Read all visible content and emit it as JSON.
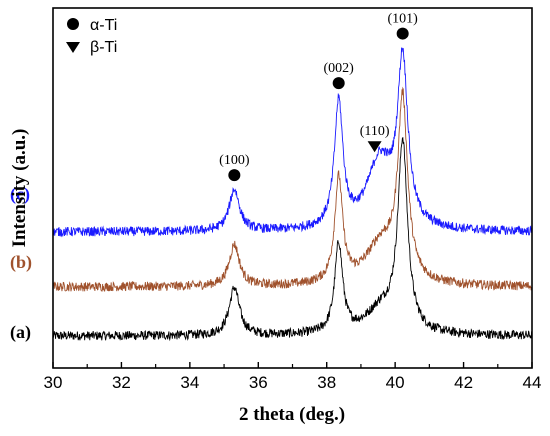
{
  "chart_data": {
    "type": "line",
    "xlabel": "2 theta (deg.)",
    "ylabel": "Intensity (a.u.)",
    "xlim": [
      30,
      44
    ],
    "x_ticks": [
      "30",
      "32",
      "34",
      "36",
      "38",
      "40",
      "42",
      "44"
    ],
    "y_ticks_shown": false,
    "grid": false,
    "legend": {
      "placement": "top-left",
      "entries": [
        {
          "marker": "circle",
          "label": "α-Ti"
        },
        {
          "marker": "triangle-down",
          "label": "β-Ti"
        }
      ]
    },
    "series": [
      {
        "name": "(a)",
        "color": "#000000",
        "baseline": 0.0,
        "peaks": [
          {
            "x": 35.3,
            "height": 0.23,
            "width": 0.18
          },
          {
            "x": 38.35,
            "height": 0.43,
            "width": 0.14
          },
          {
            "x": 39.6,
            "height": 0.12,
            "width": 0.55
          },
          {
            "x": 40.22,
            "height": 0.9,
            "width": 0.17
          }
        ]
      },
      {
        "name": "(b)",
        "color": "#a0522d",
        "baseline": 0.0,
        "peaks": [
          {
            "x": 35.3,
            "height": 0.2,
            "width": 0.18
          },
          {
            "x": 38.35,
            "height": 0.5,
            "width": 0.14
          },
          {
            "x": 39.6,
            "height": 0.2,
            "width": 0.55
          },
          {
            "x": 40.22,
            "height": 0.85,
            "width": 0.17
          }
        ]
      },
      {
        "name": "(c)",
        "color": "#1a1aff",
        "baseline": 0.0,
        "peaks": [
          {
            "x": 35.3,
            "height": 0.2,
            "width": 0.18
          },
          {
            "x": 38.35,
            "height": 0.6,
            "width": 0.15
          },
          {
            "x": 39.55,
            "height": 0.33,
            "width": 0.45
          },
          {
            "x": 40.22,
            "height": 0.78,
            "width": 0.18
          }
        ]
      }
    ],
    "annotations": [
      {
        "label": "(100)",
        "x": 35.3,
        "marker": "circle",
        "phase": "α-Ti"
      },
      {
        "label": "(002)",
        "x": 38.35,
        "marker": "circle",
        "phase": "α-Ti"
      },
      {
        "label": "(110)",
        "x": 39.4,
        "marker": "triangle-down",
        "phase": "β-Ti"
      },
      {
        "label": "(101)",
        "x": 40.22,
        "marker": "circle",
        "phase": "α-Ti"
      }
    ]
  }
}
